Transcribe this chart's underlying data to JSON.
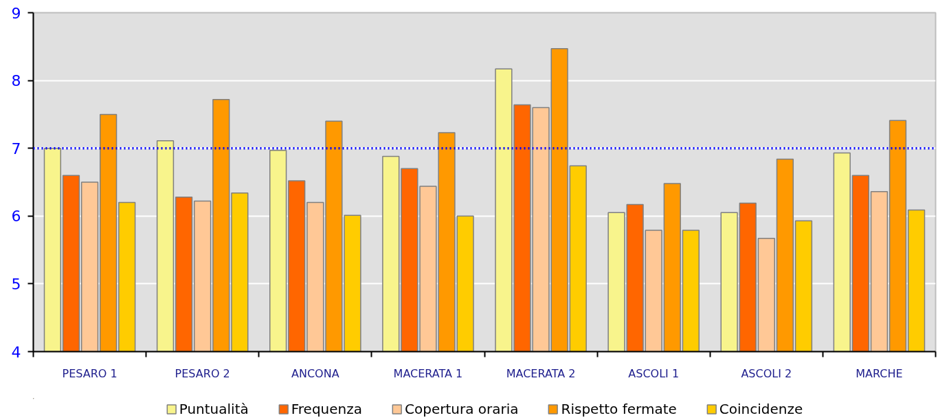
{
  "chart_data": {
    "type": "bar",
    "categories": [
      "PESARO 1",
      "PESARO 2",
      "ANCONA",
      "MACERATA 1",
      "MACERATA 2",
      "ASCOLI 1",
      "ASCOLI 2",
      "MARCHE"
    ],
    "series": [
      {
        "name": "Puntualità",
        "color": "#f8f48c",
        "values": [
          7.0,
          7.11,
          6.97,
          6.88,
          8.17,
          6.05,
          6.05,
          6.93
        ]
      },
      {
        "name": "Frequenza",
        "color": "#ff6600",
        "values": [
          6.6,
          6.28,
          6.52,
          6.7,
          7.64,
          6.17,
          6.19,
          6.6
        ]
      },
      {
        "name": "Copertura oraria",
        "color": "#ffc896",
        "values": [
          6.5,
          6.22,
          6.2,
          6.44,
          7.6,
          5.79,
          5.67,
          6.36
        ]
      },
      {
        "name": "Rispetto fermate",
        "color": "#ff9900",
        "values": [
          7.5,
          7.72,
          7.4,
          7.23,
          8.47,
          6.48,
          6.84,
          7.41
        ]
      },
      {
        "name": "Coincidenze",
        "color": "#ffcc00",
        "values": [
          6.2,
          6.34,
          6.01,
          6.0,
          6.74,
          5.79,
          5.93,
          6.09
        ]
      }
    ],
    "ylim": [
      4,
      9
    ],
    "yticks": [
      4,
      5,
      6,
      7,
      8,
      9
    ],
    "grid": "y",
    "legend": "bottom",
    "ref_lines": [
      {
        "axis": "y",
        "value": 7,
        "color": "#0000ff",
        "line_style": "dotted"
      }
    ]
  }
}
